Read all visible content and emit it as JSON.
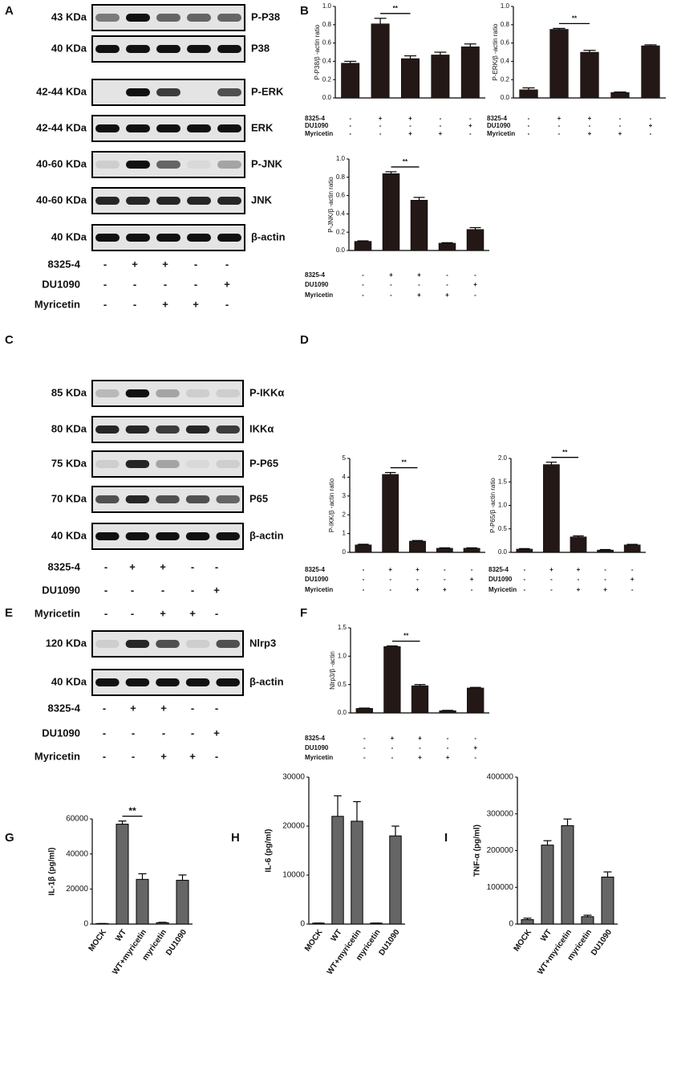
{
  "panel_labels": [
    "A",
    "B",
    "C",
    "D",
    "E",
    "F",
    "G",
    "H",
    "I"
  ],
  "blots": [
    {
      "rows": [
        {
          "size": "43 KDa",
          "protein": "P-P38"
        },
        {
          "size": "40 KDa",
          "protein": "P38"
        },
        {
          "size": "42-44 KDa",
          "protein": "P-ERK"
        },
        {
          "size": "42-44 KDa",
          "protein": "ERK"
        },
        {
          "size": "40-60 KDa",
          "protein": "P-JNK"
        },
        {
          "size": "40-60 KDa",
          "protein": "JNK"
        },
        {
          "size": "40 KDa",
          "protein": "β-actin"
        }
      ],
      "treatments": [
        {
          "name": "8325-4",
          "signs": [
            "-",
            "+",
            "+",
            "-",
            "-"
          ]
        },
        {
          "name": "DU1090",
          "signs": [
            "-",
            "-",
            "-",
            "-",
            "+"
          ]
        },
        {
          "name": "Myricetin",
          "signs": [
            "-",
            "-",
            "+",
            "+",
            "-"
          ]
        }
      ]
    },
    {
      "rows": [
        {
          "size": "85 KDa",
          "protein": "P-IKKα"
        },
        {
          "size": "80 KDa",
          "protein": "IKKα"
        },
        {
          "size": "75 KDa",
          "protein": "P-P65"
        },
        {
          "size": "70 KDa",
          "protein": "P65"
        },
        {
          "size": "40 KDa",
          "protein": "β-actin"
        }
      ],
      "treatments": [
        {
          "name": "8325-4",
          "signs": [
            "-",
            "+",
            "+",
            "-",
            "-"
          ]
        },
        {
          "name": "DU1090",
          "signs": [
            "-",
            "-",
            "-",
            "-",
            "+"
          ]
        },
        {
          "name": "Myricetin",
          "signs": [
            "-",
            "-",
            "+",
            "+",
            "-"
          ]
        }
      ]
    },
    {
      "rows": [
        {
          "size": "120 KDa",
          "protein": "Nlrp3"
        },
        {
          "size": "40 KDa",
          "protein": "β-actin"
        }
      ],
      "treatments": [
        {
          "name": "8325-4",
          "signs": [
            "-",
            "+",
            "+",
            "-",
            "-"
          ]
        },
        {
          "name": "DU1090",
          "signs": [
            "-",
            "-",
            "-",
            "-",
            "+"
          ]
        },
        {
          "name": "Myricetin",
          "signs": [
            "-",
            "-",
            "+",
            "+",
            "-"
          ]
        }
      ]
    }
  ],
  "chart_data": [
    {
      "type": "bar",
      "ylabel": "P-P38/β -actin ratio",
      "color": "#231815",
      "values": [
        0.38,
        0.81,
        0.43,
        0.47,
        0.56
      ],
      "errors": [
        0.02,
        0.06,
        0.03,
        0.03,
        0.03
      ],
      "ylim": [
        0,
        1.0
      ],
      "yticks": [
        {
          "value": 0,
          "label": "0.0"
        },
        0.2,
        0.4,
        0.6,
        0.8,
        {
          "value": 1.0,
          "label": "1.0"
        }
      ],
      "annotation": "**",
      "treatments": [
        {
          "name": "8325-4",
          "signs": [
            "-",
            "+",
            "+",
            "-",
            "-"
          ]
        },
        {
          "name": "DU1090",
          "signs": [
            "-",
            "-",
            "-",
            "-",
            "+"
          ]
        },
        {
          "name": "Myricetin",
          "signs": [
            "-",
            "-",
            "+",
            "+",
            "-"
          ]
        }
      ]
    },
    {
      "type": "bar",
      "ylabel": "P-ERK/β -actin ratio",
      "color": "#231815",
      "values": [
        0.09,
        0.75,
        0.5,
        0.06,
        0.57
      ],
      "errors": [
        0.02,
        0.01,
        0.02,
        0.005,
        0.01
      ],
      "ylim": [
        0,
        1.0
      ],
      "yticks": [
        {
          "value": 0,
          "label": "0.0"
        },
        0.2,
        0.4,
        0.6,
        0.8,
        {
          "value": 1.0,
          "label": "1.0"
        }
      ],
      "annotation": "**",
      "treatments": [
        {
          "name": "8325-4",
          "signs": [
            "-",
            "+",
            "+",
            "-",
            "-"
          ]
        },
        {
          "name": "DU1090",
          "signs": [
            "-",
            "-",
            "-",
            "-",
            "+"
          ]
        },
        {
          "name": "Myricetin",
          "signs": [
            "-",
            "-",
            "+",
            "+",
            "-"
          ]
        }
      ]
    },
    {
      "type": "bar",
      "ylabel": "P-JNK/β -actin ratio",
      "color": "#231815",
      "values": [
        0.1,
        0.84,
        0.55,
        0.08,
        0.23
      ],
      "errors": [
        0.005,
        0.02,
        0.03,
        0.005,
        0.02
      ],
      "ylim": [
        0,
        1.0
      ],
      "yticks": [
        {
          "value": 0,
          "label": "0.0"
        },
        0.2,
        0.4,
        0.6,
        0.8,
        {
          "value": 1.0,
          "label": "1.0"
        }
      ],
      "annotation": "**",
      "treatments": [
        {
          "name": "8325-4",
          "signs": [
            "-",
            "+",
            "+",
            "-",
            "-"
          ]
        },
        {
          "name": "DU1090",
          "signs": [
            "-",
            "-",
            "-",
            "-",
            "+"
          ]
        },
        {
          "name": "Myricetin",
          "signs": [
            "-",
            "-",
            "+",
            "+",
            "-"
          ]
        }
      ]
    },
    {
      "type": "bar",
      "ylabel": "P-IKK/β -actin ratio",
      "color": "#231815",
      "values": [
        0.4,
        4.15,
        0.6,
        0.22,
        0.22
      ],
      "errors": [
        0.03,
        0.1,
        0.03,
        0.02,
        0.02
      ],
      "ylim": [
        0,
        5
      ],
      "yticks": [
        0,
        1,
        2,
        3,
        4,
        5
      ],
      "annotation": "**",
      "treatments": [
        {
          "name": "8325-4",
          "signs": [
            "-",
            "+",
            "+",
            "-",
            "-"
          ]
        },
        {
          "name": "DU1090",
          "signs": [
            "-",
            "-",
            "-",
            "-",
            "+"
          ]
        },
        {
          "name": "Myricetin",
          "signs": [
            "-",
            "-",
            "+",
            "+",
            "-"
          ]
        }
      ]
    },
    {
      "type": "bar",
      "ylabel": "P-P65/β -actin ratio",
      "color": "#231815",
      "values": [
        0.07,
        1.87,
        0.33,
        0.05,
        0.16
      ],
      "errors": [
        0.01,
        0.05,
        0.02,
        0.01,
        0.01
      ],
      "ylim": [
        0,
        2.0
      ],
      "yticks": [
        {
          "value": 0,
          "label": "0.0"
        },
        0.5,
        {
          "value": 1.0,
          "label": "1.0"
        },
        1.5,
        {
          "value": 2.0,
          "label": "2.0"
        }
      ],
      "annotation": "**",
      "treatments": [
        {
          "name": "8325-4",
          "signs": [
            "-",
            "+",
            "+",
            "-",
            "-"
          ]
        },
        {
          "name": "DU1090",
          "signs": [
            "-",
            "-",
            "-",
            "-",
            "+"
          ]
        },
        {
          "name": "Myricetin",
          "signs": [
            "-",
            "-",
            "+",
            "+",
            "-"
          ]
        }
      ]
    },
    {
      "type": "bar",
      "ylabel": "Nlrp3/β -actin",
      "color": "#231815",
      "values": [
        0.08,
        1.17,
        0.48,
        0.04,
        0.44
      ],
      "errors": [
        0.005,
        0.01,
        0.02,
        0.005,
        0.01
      ],
      "ylim": [
        0,
        1.5
      ],
      "yticks": [
        {
          "value": 0,
          "label": "0.0"
        },
        0.5,
        {
          "value": 1.0,
          "label": "1.0"
        },
        1.5
      ],
      "annotation": "**",
      "treatments": [
        {
          "name": "8325-4",
          "signs": [
            "-",
            "+",
            "+",
            "-",
            "-"
          ]
        },
        {
          "name": "DU1090",
          "signs": [
            "-",
            "-",
            "-",
            "-",
            "+"
          ]
        },
        {
          "name": "Myricetin",
          "signs": [
            "-",
            "-",
            "+",
            "+",
            "-"
          ]
        }
      ]
    },
    {
      "type": "bar",
      "ylabel": "IL-1β (pg/ml)",
      "color": "#666666",
      "categories": [
        "MOCK",
        "WT",
        "WT+myricetin",
        "myricetin",
        "DU1090"
      ],
      "values": [
        300,
        57000,
        25500,
        800,
        25000
      ],
      "errors": [
        0,
        1800,
        3200,
        200,
        3000
      ],
      "ylim": [
        0,
        60000
      ],
      "yticks": [
        0,
        20000,
        40000,
        60000
      ],
      "annotation": "**"
    },
    {
      "type": "bar",
      "ylabel": "IL-6 (pg/ml)",
      "color": "#666666",
      "categories": [
        "MOCK",
        "WT",
        "WT+myricetin",
        "myricetin",
        "DU1090"
      ],
      "values": [
        200,
        22000,
        21000,
        200,
        18000
      ],
      "errors": [
        0,
        4200,
        4000,
        0,
        2000
      ],
      "ylim": [
        0,
        30000
      ],
      "yticks": [
        0,
        10000,
        20000,
        30000
      ]
    },
    {
      "type": "bar",
      "ylabel": "TNF-α (pg/ml)",
      "color": "#666666",
      "categories": [
        "MOCK",
        "WT",
        "WT+myricetin",
        "myricetin",
        "DU1090"
      ],
      "values": [
        12000,
        215000,
        268000,
        20000,
        128000
      ],
      "errors": [
        4000,
        12000,
        18000,
        4000,
        14000
      ],
      "ylim": [
        0,
        400000
      ],
      "yticks": [
        0,
        100000,
        200000,
        300000,
        400000
      ]
    }
  ]
}
